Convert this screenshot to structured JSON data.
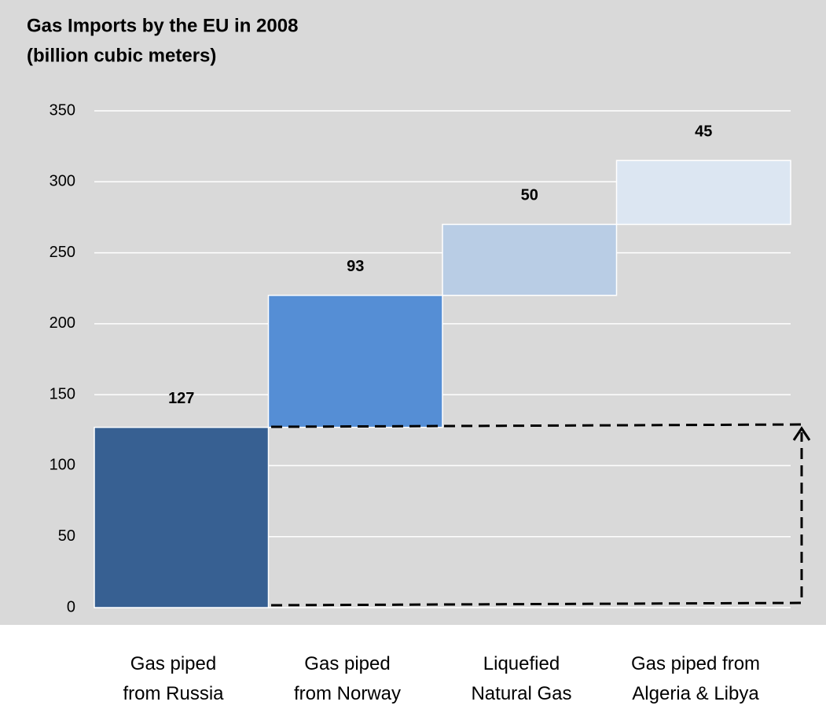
{
  "chart_data": {
    "type": "waterfall",
    "title": "Gas Imports by the EU in 2008",
    "subtitle": "(billion cubic meters)",
    "categories": [
      "Gas piped\nfrom Russia",
      "Gas piped\nfrom Norway",
      "Liquefied\nNatural Gas",
      "Gas piped from\nAlgeria & Libya"
    ],
    "values": [
      127,
      93,
      50,
      45
    ],
    "colors": [
      "#376092",
      "#558ed5",
      "#b9cde5",
      "#dce6f2"
    ],
    "ylim": [
      0,
      350
    ],
    "yticks": [
      0,
      50,
      100,
      150,
      200,
      250,
      300,
      350
    ],
    "grid": true
  }
}
